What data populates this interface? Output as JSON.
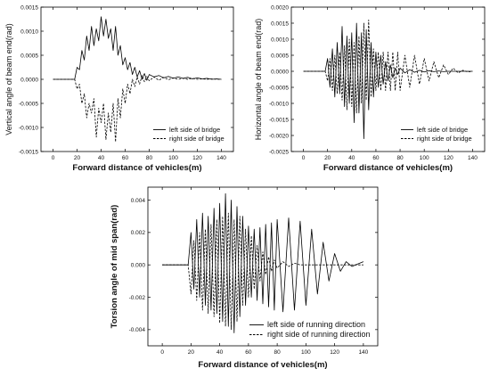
{
  "chart_data": [
    {
      "type": "line",
      "xlabel": "Forward distance of vehicles(m)",
      "ylabel": "Vertical angle of beam end(rad)",
      "xlim": [
        -10,
        150
      ],
      "ylim": [
        -0.0015,
        0.0015
      ],
      "xticks": [
        "0",
        "20",
        "40",
        "60",
        "80",
        "100",
        "120",
        "140"
      ],
      "yticks": [
        "-0.0015",
        "-0.0010",
        "-0.0005",
        "0.0000",
        "0.0005",
        "0.0010",
        "0.0015"
      ],
      "legend_position": "lower-right",
      "series": [
        {
          "name": "left side of bridge",
          "style": "solid",
          "x": [
            0,
            17,
            18,
            20,
            22,
            24,
            26,
            28,
            30,
            32,
            34,
            36,
            38,
            40,
            42,
            44,
            46,
            48,
            50,
            52,
            54,
            56,
            58,
            60,
            62,
            64,
            66,
            68,
            70,
            72,
            74,
            76,
            78,
            80,
            84,
            88,
            92,
            96,
            100,
            104,
            108,
            112,
            116,
            120,
            124,
            128,
            132,
            136,
            140
          ],
          "y": [
            0,
            0,
            0,
            0.00025,
            0.0002,
            0.0006,
            0.0004,
            0.0009,
            0.0006,
            0.0011,
            0.0007,
            0.00105,
            0.0008,
            0.0013,
            0.0009,
            0.00125,
            0.00085,
            0.00105,
            0.0006,
            0.0011,
            0.0005,
            0.0007,
            0.0003,
            0.00045,
            0.0002,
            0.00035,
            0.0001,
            0.00025,
            5e-05,
            0.00018,
            0,
            0.00012,
            -2e-05,
            0.0001,
            5e-05,
            8e-05,
            3e-05,
            6e-05,
            2e-05,
            5e-05,
            2e-05,
            4e-05,
            1e-05,
            3e-05,
            1e-05,
            2e-05,
            0,
            1e-05,
            0
          ]
        },
        {
          "name": "right side of bridge",
          "style": "dashed",
          "x": [
            0,
            17,
            18,
            20,
            22,
            24,
            26,
            28,
            30,
            32,
            34,
            36,
            38,
            40,
            42,
            44,
            46,
            48,
            50,
            52,
            54,
            56,
            58,
            60,
            62,
            64,
            66,
            68,
            70,
            72,
            74,
            76,
            78,
            80,
            84,
            88,
            92,
            96,
            100,
            104,
            108,
            112,
            116,
            120,
            124,
            128,
            132,
            136,
            140
          ],
          "y": [
            0,
            0,
            0,
            -0.0002,
            -0.0001,
            -0.0005,
            -0.0003,
            -0.0008,
            -0.0005,
            -0.0007,
            -0.0004,
            -0.0012,
            -0.0006,
            -0.0009,
            -0.0005,
            -0.00125,
            -0.0007,
            -0.0011,
            -0.0005,
            -0.0013,
            -0.0004,
            -0.0008,
            -0.0002,
            -0.0005,
            -0.0001,
            -0.0003,
            0,
            -0.00015,
            5e-05,
            -0.0001,
            8e-05,
            -5e-05,
            6e-05,
            -3e-05,
            5e-05,
            -2e-05,
            4e-05,
            -1e-05,
            3e-05,
            0,
            2e-05,
            0,
            2e-05,
            0,
            1e-05,
            0,
            1e-05,
            0,
            0
          ]
        }
      ]
    },
    {
      "type": "line",
      "xlabel": "Forward distance of vehicles(m)",
      "ylabel": "Horizontal angle of beam end(rad)",
      "xlim": [
        -10,
        150
      ],
      "ylim": [
        -0.0025,
        0.002
      ],
      "xticks": [
        "0",
        "20",
        "40",
        "60",
        "80",
        "100",
        "120",
        "140"
      ],
      "yticks": [
        "-0.0025",
        "-0.0020",
        "-0.0015",
        "-0.0010",
        "-0.0005",
        "0.0000",
        "0.0005",
        "0.0010",
        "0.0015",
        "0.0020"
      ],
      "legend_position": "lower-right",
      "series": [
        {
          "name": "left side of bridge",
          "style": "solid",
          "x": [
            0,
            17,
            18,
            20,
            22,
            24,
            26,
            28,
            30,
            32,
            34,
            36,
            38,
            40,
            42,
            44,
            46,
            48,
            50,
            52,
            54,
            56,
            58,
            60,
            62,
            64,
            66,
            68,
            70,
            72,
            74,
            76,
            78,
            80,
            84,
            88,
            92,
            96,
            100,
            104,
            108,
            112,
            116,
            120,
            124,
            128,
            132,
            136,
            140
          ],
          "y": [
            0,
            0,
            0,
            0.0004,
            -0.0005,
            0.0007,
            -0.0008,
            0.0009,
            -0.0007,
            0.0014,
            -0.0011,
            0.0011,
            -0.001,
            0.0012,
            -0.0016,
            0.0015,
            -0.0013,
            0.0012,
            -0.0021,
            0.0013,
            -0.0012,
            0.0009,
            -0.0008,
            0.0006,
            -0.0005,
            0.0005,
            -0.0004,
            0.0003,
            -0.0003,
            0.0002,
            -0.0002,
            0.0001,
            -0.0001,
            0.0001,
            -5e-05,
            5e-05,
            -3e-05,
            3e-05,
            -2e-05,
            2e-05,
            -1e-05,
            1e-05,
            -1e-05,
            0,
            0,
            0,
            0,
            0,
            0
          ]
        },
        {
          "name": "right side of bridge",
          "style": "dashed",
          "x": [
            0,
            17,
            18,
            20,
            22,
            24,
            26,
            28,
            30,
            32,
            34,
            36,
            38,
            40,
            42,
            44,
            46,
            48,
            50,
            52,
            54,
            56,
            58,
            60,
            62,
            64,
            66,
            68,
            70,
            72,
            74,
            76,
            78,
            80,
            84,
            88,
            92,
            96,
            100,
            104,
            108,
            112,
            116,
            120,
            124,
            128,
            132,
            136,
            140
          ],
          "y": [
            0,
            0,
            0,
            -0.0003,
            0.0004,
            -0.0006,
            0.0005,
            -0.0007,
            0.0006,
            -0.0009,
            0.0008,
            -0.0012,
            0.001,
            -0.0011,
            0.0009,
            -0.0013,
            0.0011,
            -0.001,
            0.0015,
            -0.0009,
            0.0016,
            -0.0008,
            0.0007,
            -0.0006,
            0.0006,
            -0.0006,
            0.0006,
            -0.0006,
            0.0006,
            -0.0006,
            0.0006,
            -0.0006,
            0.0006,
            -0.0006,
            0.0005,
            -0.0005,
            0.0005,
            -0.0004,
            0.0004,
            -0.0003,
            0.0003,
            -0.0002,
            0.0002,
            -0.0001,
            0.0001,
            -5e-05,
            3e-05,
            -2e-05,
            0
          ]
        }
      ]
    },
    {
      "type": "line",
      "xlabel": "Forward distance of vehicles(m)",
      "ylabel": "Torsion angle of mid span(rad)",
      "xlim": [
        -10,
        150
      ],
      "ylim": [
        -0.005,
        0.0048
      ],
      "xticks": [
        "0",
        "20",
        "40",
        "60",
        "80",
        "100",
        "120",
        "140"
      ],
      "yticks": [
        "-0.004",
        "-0.002",
        "0.000",
        "0.002",
        "0.004"
      ],
      "legend_position": "lower-right",
      "series": [
        {
          "name": "left side of running direction",
          "style": "solid",
          "x": [
            0,
            17,
            18,
            20,
            22,
            24,
            26,
            28,
            30,
            32,
            34,
            36,
            38,
            40,
            42,
            44,
            46,
            48,
            50,
            52,
            54,
            56,
            58,
            60,
            62,
            64,
            66,
            68,
            70,
            72,
            74,
            76,
            78,
            80,
            84,
            88,
            92,
            96,
            100,
            104,
            108,
            112,
            116,
            120,
            124,
            128,
            132,
            136,
            140
          ],
          "y": [
            0,
            0,
            0,
            0.002,
            -0.0015,
            0.0028,
            -0.002,
            0.0032,
            -0.0025,
            0.003,
            -0.0028,
            0.0035,
            -0.003,
            0.0038,
            -0.0035,
            0.0044,
            -0.0038,
            0.004,
            -0.0042,
            0.0036,
            -0.0032,
            0.003,
            -0.0025,
            0.0024,
            -0.002,
            0.0022,
            -0.0022,
            0.0023,
            -0.0024,
            0.0025,
            -0.0026,
            0.0026,
            -0.0028,
            0.0028,
            -0.0029,
            0.0029,
            -0.0028,
            0.0027,
            -0.0025,
            0.0022,
            -0.0018,
            0.0014,
            -0.001,
            0.0007,
            -0.0004,
            0.0002,
            -0.0001,
            5e-05,
            0.0002
          ]
        },
        {
          "name": "right side of running direction",
          "style": "dashed",
          "x": [
            0,
            17,
            18,
            20,
            22,
            24,
            26,
            28,
            30,
            32,
            34,
            36,
            38,
            40,
            42,
            44,
            46,
            48,
            50,
            52,
            54,
            56,
            58,
            60,
            62,
            64,
            66,
            68,
            70,
            72,
            74,
            76,
            78,
            80,
            84,
            88,
            92,
            96,
            100,
            104,
            108,
            112,
            116,
            120,
            124,
            128,
            132,
            136,
            140
          ],
          "y": [
            0,
            0,
            0,
            -0.0018,
            0.0015,
            -0.0022,
            0.002,
            -0.0028,
            0.0022,
            -0.003,
            0.0025,
            -0.0032,
            0.0028,
            -0.0036,
            0.003,
            -0.0038,
            0.0032,
            -0.004,
            0.0028,
            -0.0035,
            0.003,
            -0.0025,
            0.0022,
            -0.002,
            0.0018,
            -0.0015,
            0.0012,
            -0.001,
            0.0008,
            -0.0006,
            0.0005,
            -0.0004,
            0.0003,
            -0.0002,
            0.0002,
            -0.0001,
            0.0001,
            0,
            0,
            0,
            0,
            0,
            0,
            0,
            0,
            0,
            0,
            0,
            0
          ]
        }
      ]
    }
  ]
}
